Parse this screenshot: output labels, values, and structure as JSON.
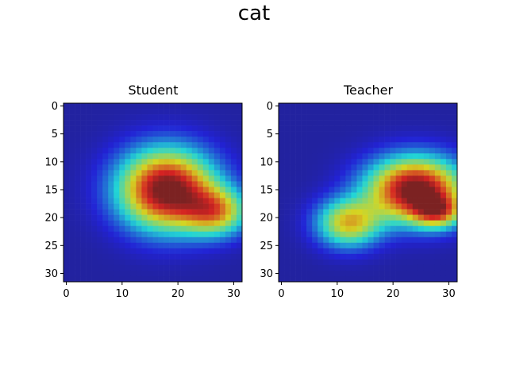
{
  "title": "cat",
  "chart_data": [
    {
      "type": "heatmap",
      "title": "Student",
      "colormap": "jet-overlay",
      "xlim": [
        0,
        31
      ],
      "ylim": [
        31,
        0
      ],
      "xticks": [
        0,
        10,
        20,
        30
      ],
      "yticks": [
        0,
        5,
        10,
        15,
        20,
        25,
        30
      ],
      "tick_labels_x": [
        "0",
        "10",
        "20",
        "30"
      ],
      "tick_labels_y": [
        "0",
        "5",
        "10",
        "15",
        "20",
        "25",
        "30"
      ],
      "activation_peaks": [
        {
          "x": 18,
          "y": 15,
          "sx": 6,
          "sy": 5,
          "w": 1.0
        },
        {
          "x": 27,
          "y": 19,
          "sx": 4,
          "sy": 3,
          "w": 0.55
        }
      ],
      "activation_floor": 0.05
    },
    {
      "type": "heatmap",
      "title": "Teacher",
      "colormap": "jet-overlay",
      "xlim": [
        0,
        31
      ],
      "ylim": [
        31,
        0
      ],
      "xticks": [
        0,
        10,
        20,
        30
      ],
      "yticks": [
        0,
        5,
        10,
        15,
        20,
        25,
        30
      ],
      "tick_labels_x": [
        "0",
        "10",
        "20",
        "30"
      ],
      "tick_labels_y": [
        "0",
        "5",
        "10",
        "15",
        "20",
        "25",
        "30"
      ],
      "activation_peaks": [
        {
          "x": 24,
          "y": 15,
          "sx": 6,
          "sy": 4,
          "w": 1.0
        },
        {
          "x": 28,
          "y": 19,
          "sx": 3,
          "sy": 2,
          "w": 0.5
        },
        {
          "x": 12,
          "y": 21,
          "sx": 4,
          "sy": 3,
          "w": 0.6
        }
      ],
      "activation_floor": 0.05
    }
  ]
}
